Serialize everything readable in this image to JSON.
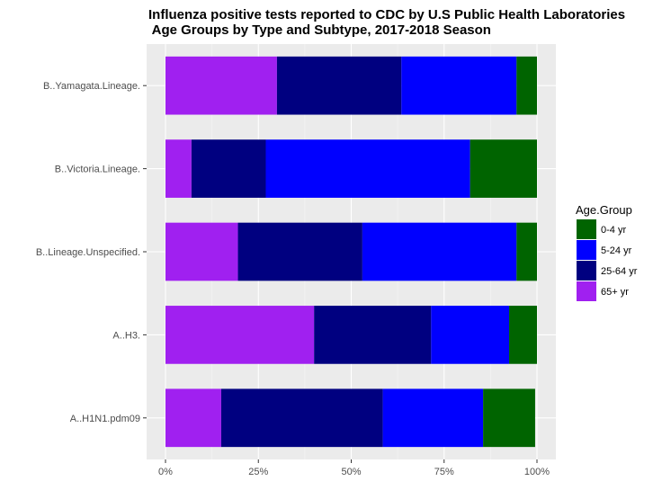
{
  "chart_data": {
    "type": "bar",
    "orientation": "horizontal",
    "stacked": "percent",
    "title_lines": [
      "Influenza positive tests reported to CDC by U.S Public Health Laboratories",
      " Age Groups by Type and Subtype, 2017-2018 Season"
    ],
    "xlabel": "",
    "ylabel": "",
    "xlim": [
      0,
      1
    ],
    "x_ticks": [
      {
        "value": 0,
        "label": "0%"
      },
      {
        "value": 0.25,
        "label": "25%"
      },
      {
        "value": 0.5,
        "label": "50%"
      },
      {
        "value": 0.75,
        "label": "75%"
      },
      {
        "value": 1,
        "label": "100%"
      }
    ],
    "categories": [
      "A..H1N1.pdm09",
      "A..H3.",
      "B..Lineage.Unspecified.",
      "B..Victoria.Lineage.",
      "B..Yamagata.Lineage."
    ],
    "legend": {
      "title": "Age.Group",
      "position": "right"
    },
    "series": [
      {
        "name": "0-4 yr",
        "color": "#006400",
        "values": [
          0.14,
          0.075,
          0.055,
          0.18,
          0.055
        ]
      },
      {
        "name": "5-24 yr",
        "color": "#0000ff",
        "values": [
          0.27,
          0.21,
          0.415,
          0.55,
          0.31
        ]
      },
      {
        "name": "25-64 yr",
        "color": "#000080",
        "values": [
          0.435,
          0.315,
          0.335,
          0.2,
          0.335
        ]
      },
      {
        "name": "65+ yr",
        "color": "#a020f0",
        "values": [
          0.15,
          0.4,
          0.195,
          0.07,
          0.3
        ]
      }
    ],
    "stack_order_from_zero": [
      "65+ yr",
      "25-64 yr",
      "5-24 yr",
      "0-4 yr"
    ],
    "grid": true,
    "panel_background": "#ebebeb"
  }
}
